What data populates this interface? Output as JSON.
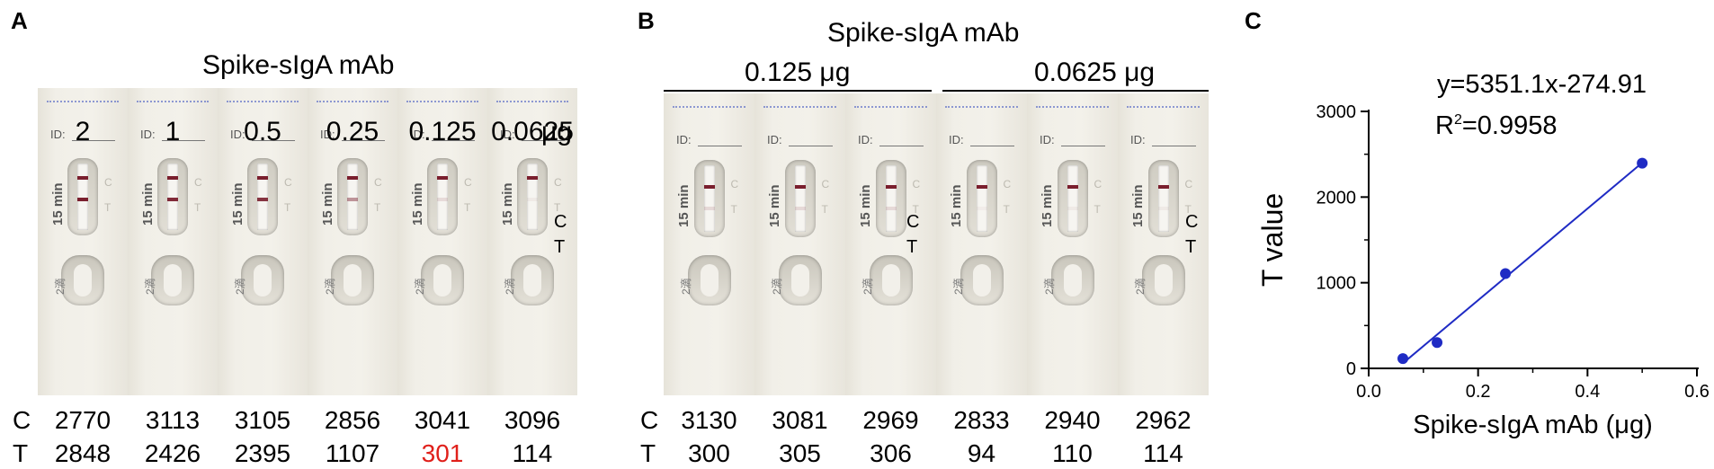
{
  "panel_a": {
    "letter": "A",
    "title": "Spike-sIgA mAb",
    "concentrations": [
      "2",
      "1",
      "0.5",
      "0.25",
      "0.125",
      "0.0625"
    ],
    "unit": "μg",
    "strip_labels": {
      "c": "C",
      "t": "T"
    },
    "strip_text": {
      "id": "ID:",
      "minutes": "15 min",
      "drop": "2滴"
    },
    "rows": {
      "c_label": "C",
      "t_label": "T",
      "c_values": [
        "2770",
        "3113",
        "3105",
        "2856",
        "3041",
        "3096"
      ],
      "t_values": [
        "2848",
        "2426",
        "2395",
        "1107",
        "301",
        "114"
      ],
      "highlight_color": "#e0201b"
    }
  },
  "panel_b": {
    "letter": "B",
    "title": "Spike-sIgA mAb",
    "groups": [
      {
        "label": "0.125 μg"
      },
      {
        "label": "0.0625 μg"
      }
    ],
    "strip_labels": {
      "c": "C",
      "t": "T"
    },
    "strip_text": {
      "id": "ID:",
      "minutes": "15 min",
      "drop": "2滴"
    },
    "rows": {
      "c_label": "C",
      "t_label": "T",
      "c_values": [
        "3130",
        "3081",
        "2969",
        "2833",
        "2940",
        "2962"
      ],
      "t_values": [
        "300",
        "305",
        "306",
        "94",
        "110",
        "114"
      ]
    }
  },
  "panel_c": {
    "letter": "C",
    "equation": "y=5351.1x-274.91",
    "r2_prefix": "R",
    "r2_sup": "2",
    "r2_value": "=0.9958",
    "line_color": "#1f2bc4"
  },
  "chart_data": {
    "type": "scatter",
    "title": "",
    "xlabel": "Spike-sIgA mAb (μg)",
    "ylabel": "T value",
    "xlim": [
      0.0,
      0.6
    ],
    "ylim": [
      0,
      3000
    ],
    "x_ticks": [
      "0.0",
      "0.2",
      "0.4",
      "0.6"
    ],
    "y_ticks": [
      "0",
      "1000",
      "2000",
      "3000"
    ],
    "x": [
      0.0625,
      0.125,
      0.25,
      0.5
    ],
    "y": [
      114,
      301,
      1107,
      2395
    ],
    "fit": {
      "slope": 5351.1,
      "intercept": -274.91,
      "x_range": [
        0.0625,
        0.5
      ]
    },
    "grid": false
  }
}
